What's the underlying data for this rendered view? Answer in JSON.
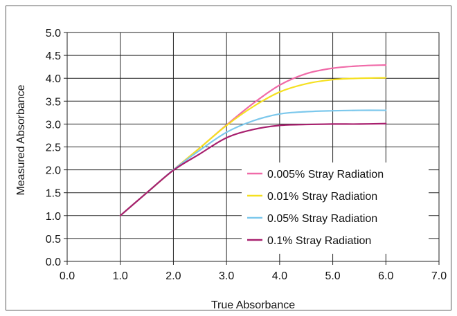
{
  "chart_data": {
    "type": "line",
    "title": "",
    "xlabel": "True Absorbance",
    "ylabel": "Measured Absorbance",
    "xlim": [
      0.0,
      7.0
    ],
    "ylim": [
      0.0,
      5.0
    ],
    "x_ticks": [
      "0.0",
      "1.0",
      "2.0",
      "3.0",
      "4.0",
      "5.0",
      "6.0",
      "7.0"
    ],
    "y_ticks": [
      "0.0",
      "0.5",
      "1.0",
      "1.5",
      "2.0",
      "2.5",
      "3.0",
      "3.5",
      "4.0",
      "4.5",
      "5.0"
    ],
    "x_tick_values": [
      0,
      1,
      2,
      3,
      4,
      5,
      6,
      7
    ],
    "y_tick_values": [
      0,
      0.5,
      1,
      1.5,
      2,
      2.5,
      3,
      3.5,
      4,
      4.5,
      5
    ],
    "grid": true,
    "legend_position": "bottom-right",
    "series": [
      {
        "name": "0.005% Stray Radiation",
        "color": "#f06aa8",
        "x": [
          1.0,
          1.5,
          2.0,
          2.5,
          3.0,
          3.5,
          4.0,
          4.5,
          5.0,
          5.5,
          6.0
        ],
        "y": [
          1.0,
          1.5,
          2.0,
          2.48,
          2.98,
          3.45,
          3.85,
          4.1,
          4.22,
          4.27,
          4.29
        ]
      },
      {
        "name": "0.01% Stray Radiation",
        "color": "#f5e020",
        "x": [
          1.0,
          1.5,
          2.0,
          2.5,
          3.0,
          3.5,
          4.0,
          4.5,
          5.0,
          5.5,
          6.0
        ],
        "y": [
          1.0,
          1.5,
          2.0,
          2.48,
          2.97,
          3.38,
          3.7,
          3.88,
          3.97,
          4.0,
          4.01
        ]
      },
      {
        "name": "0.05% Stray Radiation",
        "color": "#7cc8ec",
        "x": [
          1.0,
          1.5,
          2.0,
          2.5,
          3.0,
          3.5,
          4.0,
          4.5,
          5.0,
          5.5,
          6.0
        ],
        "y": [
          1.0,
          1.5,
          2.0,
          2.43,
          2.82,
          3.07,
          3.22,
          3.27,
          3.29,
          3.3,
          3.3
        ]
      },
      {
        "name": "0.1% Stray Radiation",
        "color": "#a8206e",
        "x": [
          1.0,
          1.5,
          2.0,
          2.5,
          3.0,
          3.5,
          4.0,
          4.5,
          5.0,
          5.5,
          6.0
        ],
        "y": [
          1.0,
          1.5,
          1.99,
          2.35,
          2.7,
          2.88,
          2.97,
          2.99,
          3.0,
          3.0,
          3.01
        ]
      }
    ]
  }
}
